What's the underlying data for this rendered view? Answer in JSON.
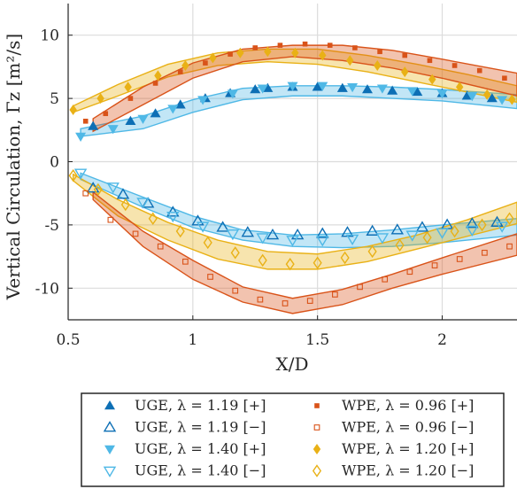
{
  "chart_data": {
    "type": "scatter",
    "xlabel": "X/D",
    "ylabel": "Vertical Circulation, Γz [m²/s]",
    "xlim": [
      0.5,
      2.3
    ],
    "ylim": [
      -12.5,
      12.5
    ],
    "xticks": [
      "0.5",
      "1",
      "1.5",
      "2"
    ],
    "yticks": [
      "10",
      "5",
      "0",
      "-5",
      "-10"
    ],
    "grid": true,
    "legend_position": "bottom",
    "series": [
      {
        "name": "UGE, λ = 1.19 [+]",
        "marker": "triangle-up-filled",
        "color": "#0d6fb5",
        "x": [
          0.6,
          0.75,
          0.85,
          0.95,
          1.05,
          1.15,
          1.25,
          1.3,
          1.4,
          1.5,
          1.6,
          1.7,
          1.8,
          1.9,
          2.0,
          2.1,
          2.2
        ],
        "y": [
          2.8,
          3.2,
          3.8,
          4.5,
          5.0,
          5.4,
          5.7,
          5.8,
          5.9,
          5.9,
          5.8,
          5.7,
          5.6,
          5.5,
          5.4,
          5.2,
          5.0
        ]
      },
      {
        "name": "UGE, λ = 1.19 [−]",
        "marker": "triangle-up-open",
        "color": "#0d6fb5",
        "x": [
          0.6,
          0.72,
          0.82,
          0.92,
          1.02,
          1.12,
          1.22,
          1.32,
          1.42,
          1.52,
          1.62,
          1.72,
          1.82,
          1.92,
          2.02,
          2.12,
          2.22
        ],
        "y": [
          -2.1,
          -2.6,
          -3.3,
          -4.0,
          -4.7,
          -5.2,
          -5.6,
          -5.8,
          -5.8,
          -5.7,
          -5.6,
          -5.5,
          -5.4,
          -5.2,
          -5.0,
          -4.9,
          -4.8
        ]
      },
      {
        "name": "UGE, λ = 1.40 [+]",
        "marker": "triangle-down-filled",
        "color": "#4fb8e6",
        "x": [
          0.55,
          0.68,
          0.8,
          0.92,
          1.04,
          1.16,
          1.28,
          1.4,
          1.52,
          1.64,
          1.76,
          1.88,
          2.0,
          2.12,
          2.24
        ],
        "y": [
          2.0,
          2.6,
          3.4,
          4.2,
          4.9,
          5.4,
          5.8,
          6.0,
          6.0,
          5.9,
          5.8,
          5.6,
          5.4,
          5.2,
          4.9
        ]
      },
      {
        "name": "UGE, λ = 1.40 [−]",
        "marker": "triangle-down-open",
        "color": "#4fb8e6",
        "x": [
          0.55,
          0.68,
          0.8,
          0.92,
          1.04,
          1.16,
          1.28,
          1.4,
          1.52,
          1.64,
          1.76,
          1.88,
          2.0,
          2.12,
          2.24
        ],
        "y": [
          -0.9,
          -2.0,
          -3.2,
          -4.3,
          -5.1,
          -5.7,
          -6.0,
          -6.2,
          -6.2,
          -6.1,
          -6.0,
          -5.8,
          -5.6,
          -5.4,
          -5.1
        ]
      },
      {
        "name": "WPE, λ = 0.96 [+]",
        "marker": "square-filled",
        "color": "#d95319",
        "x": [
          0.57,
          0.65,
          0.75,
          0.85,
          0.95,
          1.05,
          1.15,
          1.25,
          1.35,
          1.45,
          1.55,
          1.65,
          1.75,
          1.85,
          1.95,
          2.05,
          2.15,
          2.25
        ],
        "y": [
          3.2,
          3.8,
          5.0,
          6.2,
          7.1,
          7.8,
          8.5,
          9.0,
          9.2,
          9.3,
          9.2,
          9.0,
          8.7,
          8.4,
          8.0,
          7.6,
          7.2,
          6.6
        ]
      },
      {
        "name": "WPE, λ = 0.96 [−]",
        "marker": "square-open",
        "color": "#d95319",
        "x": [
          0.57,
          0.67,
          0.77,
          0.87,
          0.97,
          1.07,
          1.17,
          1.27,
          1.37,
          1.47,
          1.57,
          1.67,
          1.77,
          1.87,
          1.97,
          2.07,
          2.17,
          2.27
        ],
        "y": [
          -2.5,
          -4.6,
          -5.7,
          -6.7,
          -7.9,
          -9.1,
          -10.2,
          -10.9,
          -11.2,
          -11.0,
          -10.5,
          -9.9,
          -9.3,
          -8.7,
          -8.2,
          -7.7,
          -7.2,
          -6.7
        ]
      },
      {
        "name": "WPE, λ = 1.20 [+]",
        "marker": "diamond-filled",
        "color": "#e9b116",
        "x": [
          0.52,
          0.63,
          0.74,
          0.86,
          0.97,
          1.08,
          1.19,
          1.3,
          1.41,
          1.52,
          1.63,
          1.74,
          1.85,
          1.96,
          2.07,
          2.18,
          2.28
        ],
        "y": [
          4.1,
          5.0,
          5.9,
          6.8,
          7.6,
          8.2,
          8.6,
          8.7,
          8.6,
          8.4,
          8.0,
          7.6,
          7.1,
          6.5,
          5.9,
          5.3,
          4.9
        ]
      },
      {
        "name": "WPE, λ = 1.20 [−]",
        "marker": "diamond-open",
        "color": "#e9b116",
        "x": [
          0.52,
          0.62,
          0.73,
          0.84,
          0.95,
          1.06,
          1.17,
          1.28,
          1.39,
          1.5,
          1.61,
          1.72,
          1.83,
          1.94,
          2.05,
          2.16,
          2.27
        ],
        "y": [
          -1.1,
          -2.2,
          -3.4,
          -4.5,
          -5.5,
          -6.4,
          -7.2,
          -7.8,
          -8.1,
          -8.0,
          -7.6,
          -7.1,
          -6.6,
          -6.0,
          -5.5,
          -5.0,
          -4.5
        ]
      }
    ],
    "bands": [
      {
        "color": "#4fb8e6",
        "x": [
          0.55,
          0.8,
          1.0,
          1.2,
          1.4,
          1.6,
          1.8,
          2.0,
          2.3
        ],
        "lower": [
          2.0,
          2.6,
          3.9,
          4.9,
          5.2,
          5.2,
          5.0,
          4.8,
          4.2
        ],
        "upper": [
          2.6,
          3.6,
          4.9,
          5.8,
          6.0,
          6.0,
          5.9,
          5.7,
          5.3
        ]
      },
      {
        "color": "#4fb8e6",
        "x": [
          0.55,
          0.8,
          1.0,
          1.2,
          1.4,
          1.6,
          1.8,
          2.0,
          2.3
        ],
        "lower": [
          -1.4,
          -3.6,
          -5.2,
          -6.2,
          -6.7,
          -6.8,
          -6.7,
          -6.4,
          -5.8
        ],
        "upper": [
          -0.9,
          -2.8,
          -4.3,
          -5.4,
          -5.8,
          -5.7,
          -5.4,
          -5.0,
          -4.5
        ]
      },
      {
        "color": "#e9b116",
        "x": [
          0.52,
          0.7,
          0.9,
          1.1,
          1.3,
          1.5,
          1.7,
          1.9,
          2.1,
          2.3
        ],
        "lower": [
          3.9,
          5.2,
          6.7,
          7.6,
          7.9,
          7.7,
          7.1,
          6.3,
          5.5,
          4.7
        ],
        "upper": [
          4.4,
          6.1,
          7.7,
          8.6,
          8.9,
          8.9,
          8.4,
          7.7,
          6.9,
          6.0
        ]
      },
      {
        "color": "#e9b116",
        "x": [
          0.52,
          0.7,
          0.9,
          1.1,
          1.3,
          1.5,
          1.7,
          1.9,
          2.1,
          2.3
        ],
        "lower": [
          -1.5,
          -4.3,
          -6.2,
          -7.7,
          -8.5,
          -8.5,
          -7.9,
          -6.9,
          -5.9,
          -4.9
        ],
        "upper": [
          -1.0,
          -3.0,
          -4.8,
          -6.2,
          -7.1,
          -7.3,
          -6.7,
          -5.8,
          -4.6,
          -3.2
        ]
      },
      {
        "color": "#d95319",
        "x": [
          0.6,
          0.8,
          1.0,
          1.2,
          1.4,
          1.6,
          1.8,
          2.0,
          2.3
        ],
        "lower": [
          2.4,
          4.5,
          6.6,
          7.9,
          8.3,
          8.0,
          7.4,
          6.6,
          5.2
        ],
        "upper": [
          3.4,
          5.9,
          7.8,
          8.9,
          9.2,
          9.2,
          8.8,
          8.1,
          7.0
        ]
      },
      {
        "color": "#d95319",
        "x": [
          0.6,
          0.8,
          1.0,
          1.2,
          1.4,
          1.6,
          1.8,
          2.0,
          2.3
        ],
        "lower": [
          -3.0,
          -6.7,
          -9.3,
          -11.1,
          -12.0,
          -11.3,
          -10.0,
          -8.9,
          -7.4
        ],
        "upper": [
          -2.4,
          -5.5,
          -7.8,
          -9.9,
          -10.8,
          -10.1,
          -8.9,
          -7.6,
          -5.7
        ]
      }
    ]
  }
}
